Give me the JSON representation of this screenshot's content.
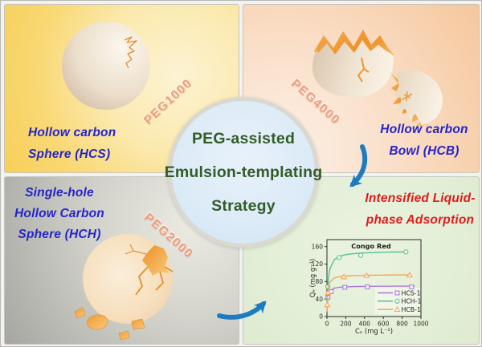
{
  "colors": {
    "label_blue": "#2424cb",
    "label_red": "#e41a1a",
    "center_green": "#335c28",
    "peg_salmon": "#f09e7e",
    "arrow_blue": "#1d7cc1"
  },
  "quadrants": {
    "top_left": {
      "line1": "Hollow carbon",
      "line2": "Sphere (HCS)",
      "peg": "PEG1000"
    },
    "top_right": {
      "line1": "Hollow carbon",
      "line2": "Bowl (HCB)",
      "peg": "PEG4000"
    },
    "bottom_left": {
      "line1": "Single-hole",
      "line2": "Hollow Carbon",
      "line3": "Sphere (HCH)",
      "peg": "PEG2000"
    },
    "bottom_right": {
      "line1": "Intensified Liquid-",
      "line2": "phase Adsorption"
    }
  },
  "center_circle": {
    "line1": "PEG-assisted",
    "line2": "Emulsion-templating",
    "line3": "Strategy"
  },
  "chart_data": {
    "type": "scatter",
    "title": "Congo Red",
    "xlabel": "Cₑ (mg L⁻¹)",
    "ylabel": "Qₑ (mg g⁻¹)",
    "xlim": [
      0,
      1000
    ],
    "ylim": [
      0,
      176
    ],
    "xticks": [
      0,
      200,
      400,
      600,
      800,
      1000
    ],
    "yticks": [
      0,
      40,
      80,
      120,
      160
    ],
    "grid": false,
    "legend_position": "inside-bottom-right",
    "series": [
      {
        "name": "HCS-1",
        "color": "#a97bd6",
        "marker": "square",
        "points": [
          [
            10,
            44
          ],
          [
            45,
            57
          ],
          [
            190,
            67
          ],
          [
            430,
            68
          ],
          [
            900,
            68
          ]
        ],
        "fit": {
          "qm": 70,
          "k": 6
        }
      },
      {
        "name": "HCH-1",
        "color": "#57c28f",
        "marker": "circle",
        "points": [
          [
            10,
            68
          ],
          [
            130,
            135
          ],
          [
            360,
            140
          ],
          [
            840,
            148
          ]
        ],
        "fit": {
          "qm": 150,
          "k": 12
        }
      },
      {
        "name": "HCB-1",
        "color": "#f3a65a",
        "marker": "triangle",
        "points": [
          [
            4,
            27
          ],
          [
            12,
            55
          ],
          [
            180,
            91
          ],
          [
            420,
            94
          ],
          [
            880,
            95
          ]
        ],
        "fit": {
          "qm": 96,
          "k": 7
        }
      }
    ]
  }
}
